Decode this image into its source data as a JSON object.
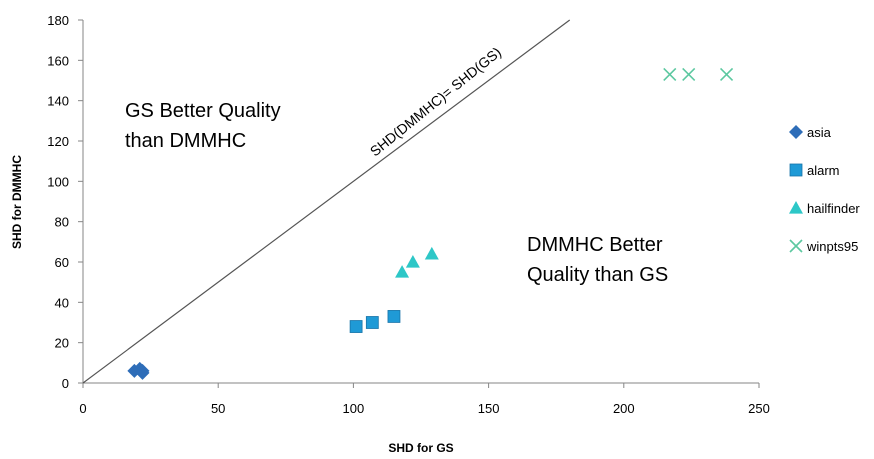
{
  "chart_data": {
    "type": "scatter",
    "xlabel": "SHD for GS",
    "ylabel": "SHD for DMMHC",
    "xlim": [
      0,
      250
    ],
    "ylim": [
      0,
      180
    ],
    "xticks": [
      0,
      50,
      100,
      150,
      200,
      250
    ],
    "yticks": [
      0,
      20,
      40,
      60,
      80,
      100,
      120,
      140,
      160,
      180
    ],
    "grid": false,
    "legend_position": "right",
    "series": [
      {
        "name": "asia",
        "marker": "diamond",
        "color": "#2E6DB8",
        "points": [
          [
            19,
            6
          ],
          [
            21,
            7
          ],
          [
            22,
            6
          ],
          [
            22,
            5
          ]
        ]
      },
      {
        "name": "alarm",
        "marker": "square",
        "color": "#1F9AD6",
        "points": [
          [
            101,
            28
          ],
          [
            107,
            30
          ],
          [
            115,
            33
          ]
        ]
      },
      {
        "name": "hailfinder",
        "marker": "triangle",
        "color": "#2DC7C7",
        "points": [
          [
            118,
            55
          ],
          [
            122,
            60
          ],
          [
            129,
            64
          ]
        ]
      },
      {
        "name": "winpts95",
        "marker": "x",
        "color": "#5CC8A0",
        "points": [
          [
            217,
            153
          ],
          [
            224,
            153
          ],
          [
            238,
            153
          ]
        ]
      }
    ],
    "reference_line": {
      "label": "SHD(DMMHC)= SHD(GS)",
      "slope": 1,
      "intercept": 0
    },
    "annotations": [
      {
        "lines": [
          "GS Better Quality",
          "than DMMHC"
        ]
      },
      {
        "lines": [
          "DMMHC Better",
          "Quality than GS"
        ]
      }
    ]
  }
}
